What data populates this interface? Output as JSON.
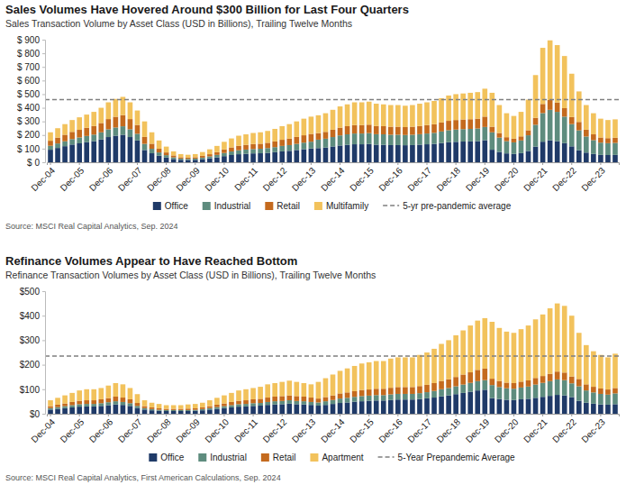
{
  "chart_data": [
    {
      "type": "bar",
      "stacked": true,
      "grid": false,
      "legend": "bottom",
      "title": "Sales Volumes Have Hovered Around $300 Billion for Last Four Quarters",
      "subtitle": "Sales Transaction Volume by Asset Class (USD in Billions), Trailing Twelve Months",
      "source": "Source: MSCI Real Capital Analytics, Sep. 2024",
      "categories": [
        "Dec-04",
        null,
        null,
        null,
        "Dec-05",
        null,
        null,
        null,
        "Dec-06",
        null,
        null,
        null,
        "Dec-07",
        null,
        null,
        null,
        "Dec-08",
        null,
        null,
        null,
        "Dec-09",
        null,
        null,
        null,
        "Dec-10",
        null,
        null,
        null,
        "Dec-11",
        null,
        null,
        null,
        "Dec-12",
        null,
        null,
        null,
        "Dec-13",
        null,
        null,
        null,
        "Dec-14",
        null,
        null,
        null,
        "Dec-15",
        null,
        null,
        null,
        "Dec-16",
        null,
        null,
        null,
        "Dec-17",
        null,
        null,
        null,
        "Dec-18",
        null,
        null,
        null,
        "Dec-19",
        null,
        null,
        null,
        "Dec-20",
        null,
        null,
        null,
        "Dec-21",
        null,
        null,
        null,
        "Dec-22",
        null,
        null,
        null,
        "Dec-23",
        null,
        null
      ],
      "ylim": [
        0,
        900
      ],
      "yticks": [
        {
          "value": 0,
          "label": "$ 0"
        },
        {
          "value": 100,
          "label": "$ 100"
        },
        {
          "value": 200,
          "label": "$ 200"
        },
        {
          "value": 300,
          "label": "$ 300"
        },
        {
          "value": 400,
          "label": "$ 400"
        },
        {
          "value": 500,
          "label": "$ 500"
        },
        {
          "value": 600,
          "label": "$ 600"
        },
        {
          "value": 700,
          "label": "$ 700"
        },
        {
          "value": 800,
          "label": "$ 800"
        },
        {
          "value": 900,
          "label": "$ 900"
        }
      ],
      "series": [
        {
          "name": "Office",
          "color": "#1f3a68",
          "values": [
            92,
            105,
            118,
            130,
            139,
            147,
            155,
            168,
            185,
            195,
            202,
            185,
            160,
            90,
            66,
            48,
            35,
            24,
            18,
            17,
            18,
            23,
            29,
            36,
            45,
            53,
            59,
            62,
            65,
            66,
            69,
            74,
            80,
            84,
            90,
            96,
            101,
            104,
            108,
            116,
            123,
            128,
            132,
            132,
            134,
            129,
            128,
            126,
            126,
            125,
            126,
            129,
            132,
            135,
            141,
            147,
            150,
            152,
            153,
            155,
            162,
            92,
            76,
            65,
            61,
            67,
            83,
            115,
            151,
            161,
            155,
            140,
            117,
            88,
            71,
            61,
            54,
            53,
            54
          ]
        },
        {
          "name": "Industrial",
          "color": "#5e8c7e",
          "values": [
            29,
            33,
            36,
            40,
            43,
            46,
            48,
            52,
            57,
            60,
            62,
            57,
            49,
            45,
            33,
            24,
            17,
            12,
            9,
            8,
            9,
            11,
            14,
            18,
            23,
            26,
            29,
            31,
            32,
            33,
            35,
            37,
            40,
            42,
            45,
            48,
            50,
            62,
            65,
            69,
            74,
            77,
            79,
            79,
            80,
            77,
            77,
            76,
            76,
            75,
            76,
            77,
            79,
            81,
            85,
            88,
            90,
            91,
            92,
            93,
            97,
            128,
            105,
            90,
            85,
            93,
            115,
            160,
            210,
            224,
            215,
            195,
            163,
            146,
            118,
            101,
            90,
            87,
            88
          ]
        },
        {
          "name": "Retail",
          "color": "#c46a1e",
          "values": [
            37,
            43,
            48,
            53,
            56,
            60,
            63,
            68,
            75,
            79,
            82,
            75,
            65,
            51,
            37,
            27,
            20,
            14,
            10,
            9,
            10,
            13,
            16,
            20,
            26,
            30,
            33,
            35,
            37,
            37,
            39,
            42,
            45,
            48,
            51,
            54,
            57,
            48,
            50,
            54,
            57,
            60,
            62,
            62,
            62,
            60,
            60,
            59,
            59,
            58,
            59,
            60,
            62,
            63,
            66,
            69,
            70,
            71,
            71,
            72,
            76,
            41,
            34,
            29,
            27,
            30,
            37,
            51,
            67,
            72,
            69,
            62,
            52,
            62,
            50,
            43,
            38,
            37,
            38
          ]
        },
        {
          "name": "Multifamily",
          "color": "#f2c25c",
          "values": [
            62,
            69,
            78,
            87,
            92,
            97,
            104,
            112,
            123,
            131,
            134,
            123,
            106,
            114,
            84,
            61,
            43,
            30,
            23,
            21,
            23,
            28,
            36,
            46,
            56,
            66,
            74,
            77,
            81,
            84,
            87,
            92,
            100,
            106,
            114,
            122,
            127,
            131,
            137,
            146,
            156,
            160,
            167,
            167,
            169,
            164,
            160,
            159,
            159,
            157,
            159,
            164,
            167,
            171,
            178,
            186,
            190,
            191,
            194,
            195,
            205,
            249,
            205,
            176,
            167,
            180,
            225,
            314,
            412,
            438,
            421,
            383,
            318,
            224,
            181,
            155,
            138,
            133,
            135
          ]
        }
      ],
      "reference": {
        "name": "5-yr pre-pandemic average",
        "value": 460,
        "color": "#7f7f7f",
        "line_style": "dashed"
      }
    },
    {
      "type": "bar",
      "stacked": true,
      "grid": false,
      "legend": "bottom",
      "title": "Refinance Volumes Appear to Have Reached Bottom",
      "subtitle": "Refinance Transaction Volumes by Asset Class (USD in Billions), Trailing Twelve Months",
      "source": "Source: MSCI Real Capital Analytics, First American Calculations, Sep. 2024",
      "categories": [
        "Dec-04",
        null,
        null,
        null,
        "Dec-05",
        null,
        null,
        null,
        "Dec-06",
        null,
        null,
        null,
        "Dec-07",
        null,
        null,
        null,
        "Dec-08",
        null,
        null,
        null,
        "Dec-09",
        null,
        null,
        null,
        "Dec-10",
        null,
        null,
        null,
        "Dec-11",
        null,
        null,
        null,
        "Dec-12",
        null,
        null,
        null,
        "Dec-13",
        null,
        null,
        null,
        "Dec-14",
        null,
        null,
        null,
        "Dec-15",
        null,
        null,
        null,
        "Dec-16",
        null,
        null,
        null,
        "Dec-17",
        null,
        null,
        null,
        "Dec-18",
        null,
        null,
        null,
        "Dec-19",
        null,
        null,
        null,
        "Dec-20",
        null,
        null,
        null,
        "Dec-21",
        null,
        null,
        null,
        "Dec-22",
        null,
        null,
        null,
        "Dec-23",
        null,
        null
      ],
      "ylim": [
        0,
        500
      ],
      "yticks": [
        {
          "value": 0,
          "label": "$0"
        },
        {
          "value": 100,
          "label": "$100"
        },
        {
          "value": 200,
          "label": "$200"
        },
        {
          "value": 300,
          "label": "$300"
        },
        {
          "value": 400,
          "label": "$400"
        },
        {
          "value": 500,
          "label": "$500"
        }
      ],
      "series": [
        {
          "name": "Office",
          "color": "#1f3a68",
          "values": [
            17,
            20,
            23,
            26,
            29,
            30,
            30,
            32,
            35,
            38,
            36,
            32,
            24,
            17,
            14,
            12,
            11,
            11,
            11,
            11,
            12,
            14,
            17,
            20,
            23,
            26,
            29,
            30,
            32,
            33,
            36,
            38,
            39,
            41,
            39,
            38,
            36,
            33,
            36,
            40,
            44,
            46,
            49,
            51,
            53,
            54,
            54,
            56,
            58,
            58,
            58,
            60,
            63,
            66,
            71,
            75,
            80,
            85,
            90,
            95,
            98,
            64,
            60,
            57,
            56,
            59,
            61,
            65,
            69,
            73,
            77,
            75,
            68,
            53,
            45,
            41,
            38,
            37,
            39
          ]
        },
        {
          "name": "Industrial",
          "color": "#5e8c7e",
          "values": [
            6,
            7,
            8,
            9,
            10,
            10,
            10,
            11,
            12,
            13,
            12,
            11,
            8,
            6,
            5,
            4,
            4,
            4,
            4,
            4,
            4,
            5,
            6,
            7,
            8,
            9,
            10,
            10,
            11,
            11,
            12,
            13,
            13,
            14,
            13,
            13,
            12,
            13,
            15,
            16,
            18,
            19,
            20,
            21,
            21,
            22,
            22,
            23,
            23,
            23,
            23,
            24,
            25,
            27,
            29,
            30,
            32,
            34,
            36,
            38,
            39,
            53,
            49,
            47,
            46,
            48,
            50,
            54,
            57,
            60,
            63,
            62,
            56,
            59,
            50,
            46,
            43,
            41,
            44
          ]
        },
        {
          "name": "Retail",
          "color": "#c46a1e",
          "values": [
            8,
            10,
            11,
            13,
            14,
            15,
            15,
            16,
            17,
            19,
            18,
            16,
            12,
            8,
            7,
            6,
            5,
            5,
            5,
            6,
            6,
            7,
            8,
            10,
            11,
            13,
            14,
            15,
            16,
            17,
            18,
            19,
            20,
            20,
            20,
            19,
            18,
            16,
            17,
            19,
            21,
            22,
            23,
            25,
            25,
            26,
            26,
            27,
            28,
            28,
            28,
            29,
            30,
            32,
            34,
            36,
            38,
            41,
            43,
            46,
            47,
            26,
            25,
            23,
            23,
            24,
            25,
            27,
            28,
            30,
            32,
            31,
            28,
            30,
            25,
            23,
            22,
            21,
            22
          ]
        },
        {
          "name": "Apartment",
          "color": "#f2c25c",
          "values": [
            24,
            28,
            33,
            37,
            42,
            45,
            45,
            46,
            51,
            55,
            54,
            46,
            36,
            24,
            19,
            18,
            15,
            15,
            15,
            17,
            18,
            19,
            24,
            28,
            33,
            37,
            42,
            45,
            46,
            49,
            54,
            55,
            58,
            60,
            58,
            55,
            54,
            68,
            77,
            85,
            92,
            98,
            103,
            108,
            111,
            113,
            113,
            119,
            121,
            121,
            121,
            127,
            132,
            140,
            151,
            159,
            170,
            180,
            191,
            201,
            206,
            232,
            216,
            208,
            205,
            214,
            224,
            239,
            251,
            267,
            278,
            272,
            248,
            188,
            160,
            145,
            137,
            131,
            140
          ]
        }
      ],
      "reference": {
        "name": "5-Year Prepandemic Average",
        "value": 235,
        "color": "#7f7f7f",
        "line_style": "dashed"
      }
    }
  ]
}
